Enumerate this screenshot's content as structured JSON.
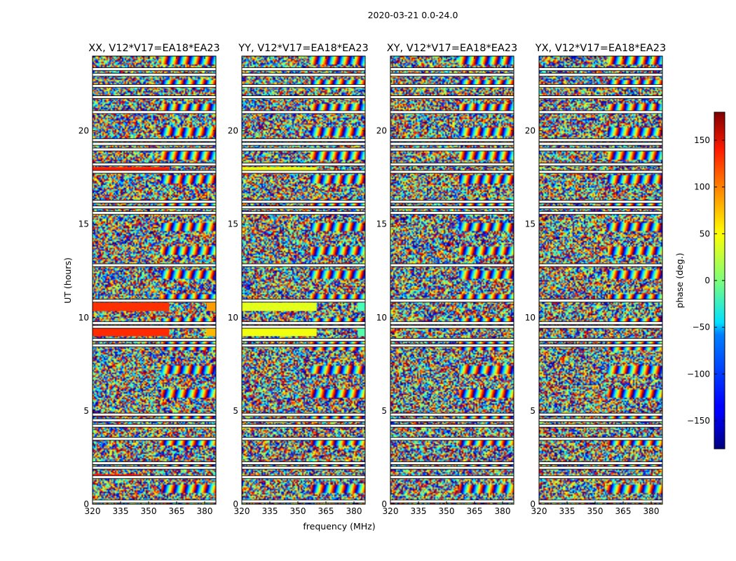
{
  "chart_data": {
    "type": "heatmap",
    "suptitle": "2020-03-21 0.0-24.0",
    "panels": [
      {
        "title": "XX, V12*V17=EA18*EA23",
        "polarization": "XX"
      },
      {
        "title": "YY, V12*V17=EA18*EA23",
        "polarization": "YY"
      },
      {
        "title": "XY, V12*V17=EA18*EA23",
        "polarization": "XY"
      },
      {
        "title": "YX, V12*V17=EA18*EA23",
        "polarization": "YX"
      }
    ],
    "xlabel": "frequency (MHz)",
    "ylabel": "UT (hours)",
    "xlim": [
      320,
      386
    ],
    "ylim": [
      0,
      24
    ],
    "xticks": [
      320,
      335,
      350,
      365,
      380
    ],
    "yticks": [
      0,
      5,
      10,
      15,
      20
    ],
    "colorbar": {
      "label": "phase (deg.)",
      "range": [
        -180,
        180
      ],
      "ticks": [
        150,
        100,
        50,
        0,
        -50,
        -100,
        -150
      ],
      "tick_labels": [
        "150",
        "100",
        "50",
        "0",
        "−50",
        "−100",
        "−150"
      ],
      "colormap": "jet"
    },
    "flagged_ut_hours": [
      0.15,
      1.45,
      1.95,
      2.2,
      3.5,
      4.2,
      4.5,
      4.8,
      8.5,
      8.8,
      9.5,
      9.7,
      10.9,
      12.8,
      15.6,
      15.9,
      16.2,
      17.8,
      18.2,
      19.0,
      19.3,
      19.5,
      21.0,
      21.8,
      22.4,
      23.0,
      23.3
    ],
    "coherent_segments": [
      {
        "panel": "XX",
        "ut_start": 9.0,
        "ut_end": 9.45,
        "freq_start": 320,
        "freq_end": 361,
        "phase_deg": 120
      },
      {
        "panel": "XX",
        "ut_start": 10.35,
        "ut_end": 10.8,
        "freq_start": 320,
        "freq_end": 361,
        "phase_deg": 118
      },
      {
        "panel": "XX",
        "ut_start": 10.35,
        "ut_end": 10.8,
        "freq_start": 381,
        "freq_end": 386,
        "phase_deg": 80
      },
      {
        "panel": "XX",
        "ut_start": 9.0,
        "ut_end": 9.45,
        "freq_start": 381,
        "freq_end": 386,
        "phase_deg": 70
      },
      {
        "panel": "XX",
        "ut_start": 17.8,
        "ut_end": 18.05,
        "freq_start": 320,
        "freq_end": 361,
        "phase_deg": 125
      },
      {
        "panel": "XX",
        "ut_start": 1.45,
        "ut_end": 1.6,
        "freq_start": 320,
        "freq_end": 345,
        "phase_deg": 130
      },
      {
        "panel": "XX",
        "ut_start": 4.7,
        "ut_end": 4.85,
        "freq_start": 320,
        "freq_end": 355,
        "phase_deg": 125
      },
      {
        "panel": "YY",
        "ut_start": 9.0,
        "ut_end": 9.45,
        "freq_start": 320,
        "freq_end": 360,
        "phase_deg": 40
      },
      {
        "panel": "YY",
        "ut_start": 10.35,
        "ut_end": 10.8,
        "freq_start": 320,
        "freq_end": 360,
        "phase_deg": 35
      },
      {
        "panel": "YY",
        "ut_start": 10.35,
        "ut_end": 10.8,
        "freq_start": 382,
        "freq_end": 386,
        "phase_deg": -20
      },
      {
        "panel": "YY",
        "ut_start": 9.0,
        "ut_end": 9.45,
        "freq_start": 382,
        "freq_end": 386,
        "phase_deg": -15
      },
      {
        "panel": "YY",
        "ut_start": 17.8,
        "ut_end": 18.05,
        "freq_start": 320,
        "freq_end": 360,
        "phase_deg": 40
      },
      {
        "panel": "YY",
        "ut_start": 4.7,
        "ut_end": 4.85,
        "freq_start": 320,
        "freq_end": 350,
        "phase_deg": 35
      }
    ]
  }
}
